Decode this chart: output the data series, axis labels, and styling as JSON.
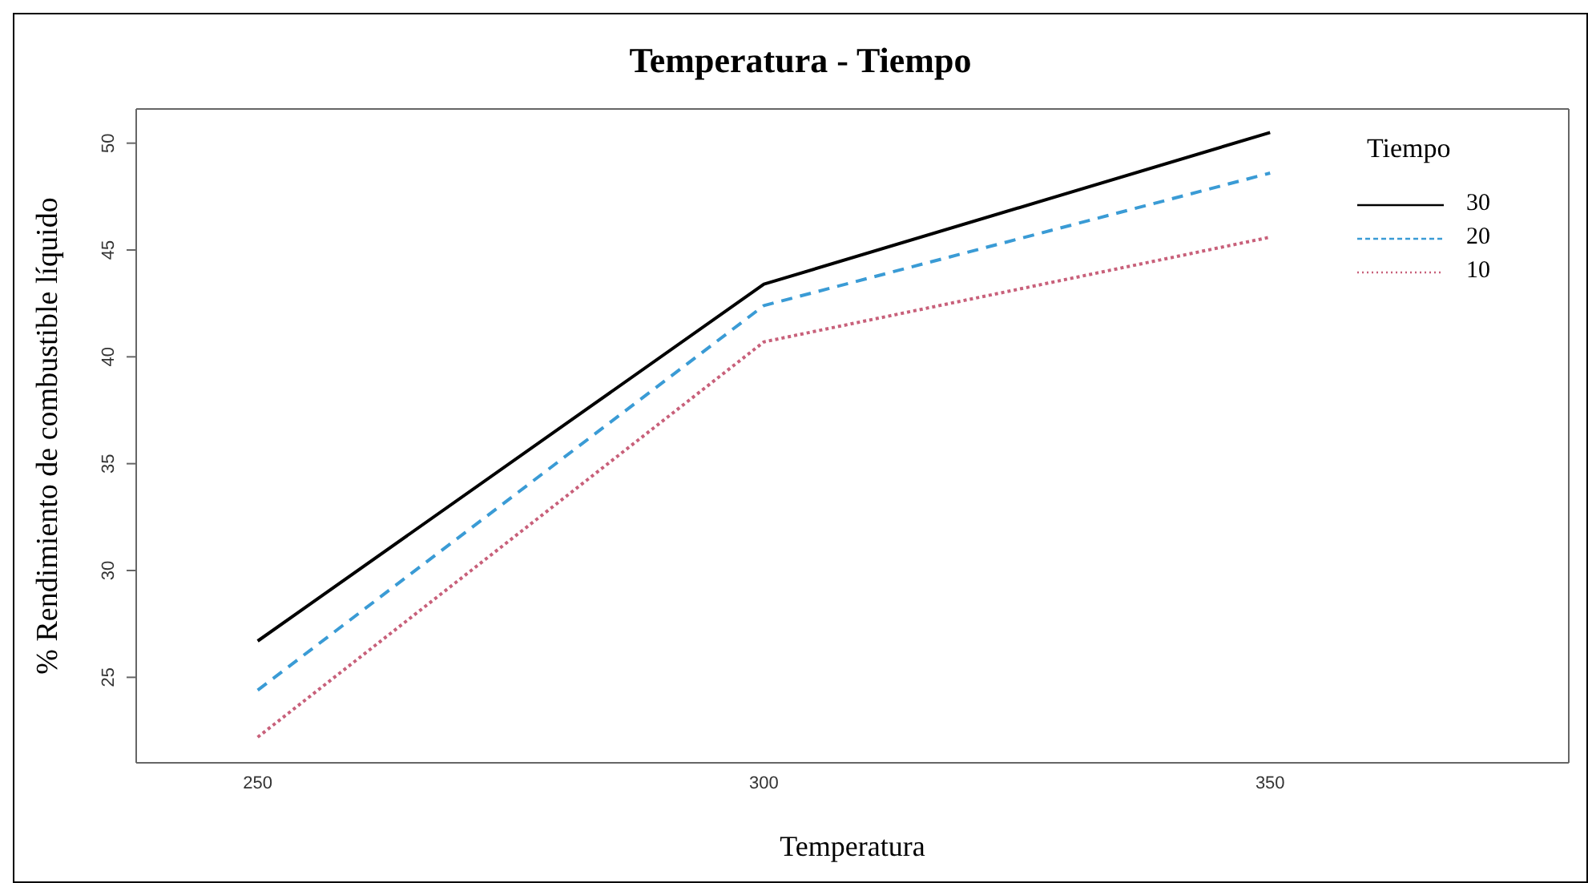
{
  "chart_data": {
    "type": "line",
    "title": "Temperatura - Tiempo",
    "xlabel": "Temperatura",
    "ylabel": "% Rendimiento de combustible líquido",
    "legend_title": "Tiempo",
    "categories": [
      "250",
      "300",
      "350"
    ],
    "series": [
      {
        "name": "30",
        "color": "#000000",
        "line_style": "solid",
        "values": [
          26.7,
          43.4,
          50.5
        ]
      },
      {
        "name": "20",
        "color": "#3a9bd5",
        "line_style": "dashed",
        "values": [
          24.4,
          42.4,
          48.6
        ]
      },
      {
        "name": "10",
        "color": "#c8607a",
        "line_style": "dotted",
        "values": [
          22.2,
          40.7,
          45.6
        ]
      }
    ],
    "ylim": [
      21,
      51.6
    ],
    "yticks": [
      25,
      30,
      35,
      40,
      45,
      50
    ],
    "legend": "top right",
    "marker": "none"
  }
}
